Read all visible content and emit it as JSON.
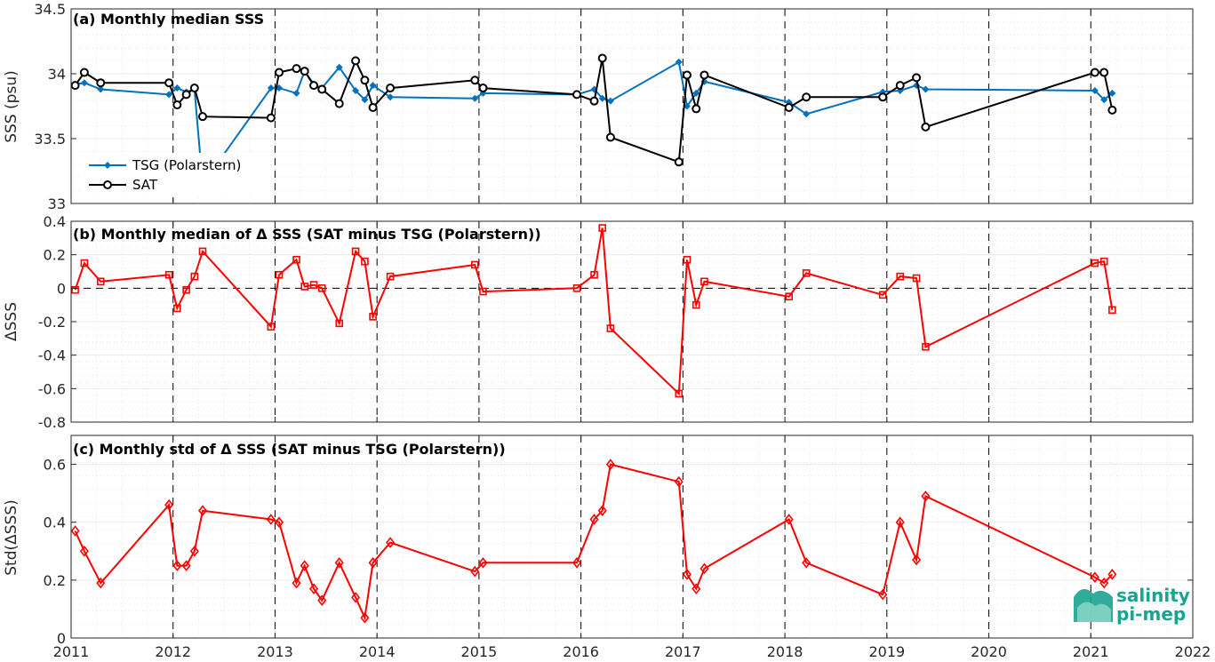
{
  "chart_data": [
    {
      "type": "line",
      "title": "(a) Monthly median SSS",
      "ylabel": "SSS (psu)",
      "xlim": [
        2011,
        2022
      ],
      "ylim": [
        33,
        34.5
      ],
      "yticks": [
        "33",
        "33.5",
        "34",
        "34.5"
      ],
      "xticks": [
        "2011",
        "2012",
        "2013",
        "2014",
        "2015",
        "2016",
        "2017",
        "2018",
        "2019",
        "2020",
        "2021",
        "2022"
      ],
      "legend_position": "lower-left",
      "series": [
        {
          "name": "TSG (Polarstern)",
          "color": "#0072bd",
          "marker": "diamond",
          "points": [
            [
              2011.04,
              33.92
            ],
            [
              2011.13,
              33.93
            ],
            [
              2011.29,
              33.88
            ],
            [
              2011.96,
              33.84
            ],
            [
              2012.04,
              33.89
            ],
            [
              2012.13,
              33.86
            ],
            [
              2012.21,
              33.88
            ],
            [
              2012.29,
              33.15
            ],
            [
              2012.96,
              33.89
            ],
            [
              2013.04,
              33.89
            ],
            [
              2013.21,
              33.85
            ],
            [
              2013.29,
              34.02
            ],
            [
              2013.38,
              33.92
            ],
            [
              2013.46,
              33.89
            ],
            [
              2013.63,
              34.05
            ],
            [
              2013.79,
              33.87
            ],
            [
              2013.88,
              33.8
            ],
            [
              2013.96,
              33.91
            ],
            [
              2014.13,
              33.82
            ],
            [
              2014.96,
              33.81
            ],
            [
              2015.04,
              33.85
            ],
            [
              2015.96,
              33.84
            ],
            [
              2016.13,
              33.88
            ],
            [
              2016.21,
              33.81
            ],
            [
              2016.29,
              33.79
            ],
            [
              2016.96,
              34.09
            ],
            [
              2017.04,
              33.75
            ],
            [
              2017.13,
              33.85
            ],
            [
              2017.21,
              33.94
            ],
            [
              2018.04,
              33.78
            ],
            [
              2018.21,
              33.69
            ],
            [
              2018.96,
              33.86
            ],
            [
              2019.13,
              33.87
            ],
            [
              2019.29,
              33.91
            ],
            [
              2019.38,
              33.88
            ],
            [
              2021.04,
              33.87
            ],
            [
              2021.13,
              33.8
            ],
            [
              2021.21,
              33.85
            ]
          ]
        },
        {
          "name": "SAT",
          "color": "#000000",
          "marker": "circle",
          "points": [
            [
              2011.04,
              33.91
            ],
            [
              2011.13,
              34.01
            ],
            [
              2011.29,
              33.93
            ],
            [
              2011.96,
              33.93
            ],
            [
              2012.04,
              33.76
            ],
            [
              2012.13,
              33.84
            ],
            [
              2012.21,
              33.89
            ],
            [
              2012.29,
              33.67
            ],
            [
              2012.96,
              33.66
            ],
            [
              2013.04,
              34.01
            ],
            [
              2013.21,
              34.04
            ],
            [
              2013.29,
              34.02
            ],
            [
              2013.38,
              33.91
            ],
            [
              2013.46,
              33.88
            ],
            [
              2013.63,
              33.77
            ],
            [
              2013.79,
              34.1
            ],
            [
              2013.88,
              33.95
            ],
            [
              2013.96,
              33.74
            ],
            [
              2014.13,
              33.89
            ],
            [
              2014.96,
              33.95
            ],
            [
              2015.04,
              33.89
            ],
            [
              2015.96,
              33.84
            ],
            [
              2016.13,
              33.79
            ],
            [
              2016.21,
              34.12
            ],
            [
              2016.29,
              33.51
            ],
            [
              2016.96,
              33.32
            ],
            [
              2017.04,
              33.99
            ],
            [
              2017.13,
              33.73
            ],
            [
              2017.21,
              33.99
            ],
            [
              2018.04,
              33.74
            ],
            [
              2018.21,
              33.82
            ],
            [
              2018.96,
              33.82
            ],
            [
              2019.13,
              33.91
            ],
            [
              2019.29,
              33.97
            ],
            [
              2019.38,
              33.59
            ],
            [
              2021.04,
              34.01
            ],
            [
              2021.13,
              34.01
            ],
            [
              2021.21,
              33.72
            ]
          ]
        }
      ]
    },
    {
      "type": "line",
      "title": "(b) Monthly median of Δ SSS (SAT minus TSG (Polarstern))",
      "ylabel": "ΔSSS",
      "xlim": [
        2011,
        2022
      ],
      "ylim": [
        -0.8,
        0.4
      ],
      "yticks": [
        "-0.8",
        "-0.6",
        "-0.4",
        "-0.2",
        "0",
        "0.2",
        "0.4"
      ],
      "xticks": [
        "2011",
        "2012",
        "2013",
        "2014",
        "2015",
        "2016",
        "2017",
        "2018",
        "2019",
        "2020",
        "2021",
        "2022"
      ],
      "reference_line": 0,
      "series": [
        {
          "color": "#ff0000",
          "marker": "square",
          "points": [
            [
              2011.04,
              -0.01
            ],
            [
              2011.13,
              0.15
            ],
            [
              2011.29,
              0.04
            ],
            [
              2011.96,
              0.08
            ],
            [
              2012.04,
              -0.12
            ],
            [
              2012.13,
              -0.01
            ],
            [
              2012.21,
              0.07
            ],
            [
              2012.29,
              0.22
            ],
            [
              2012.96,
              -0.23
            ],
            [
              2013.04,
              0.08
            ],
            [
              2013.21,
              0.17
            ],
            [
              2013.29,
              0.01
            ],
            [
              2013.38,
              0.02
            ],
            [
              2013.46,
              0.0
            ],
            [
              2013.63,
              -0.21
            ],
            [
              2013.79,
              0.22
            ],
            [
              2013.88,
              0.16
            ],
            [
              2013.96,
              -0.17
            ],
            [
              2014.13,
              0.07
            ],
            [
              2014.96,
              0.14
            ],
            [
              2015.04,
              -0.02
            ],
            [
              2015.96,
              0.0
            ],
            [
              2016.13,
              0.08
            ],
            [
              2016.21,
              0.36
            ],
            [
              2016.29,
              -0.24
            ],
            [
              2016.96,
              -0.63
            ],
            [
              2017.04,
              0.17
            ],
            [
              2017.13,
              -0.1
            ],
            [
              2017.21,
              0.04
            ],
            [
              2018.04,
              -0.05
            ],
            [
              2018.21,
              0.09
            ],
            [
              2018.96,
              -0.04
            ],
            [
              2019.13,
              0.07
            ],
            [
              2019.29,
              0.06
            ],
            [
              2019.38,
              -0.35
            ],
            [
              2021.04,
              0.15
            ],
            [
              2021.13,
              0.16
            ],
            [
              2021.21,
              -0.13
            ]
          ]
        }
      ]
    },
    {
      "type": "line",
      "title": "(c) Monthly std of Δ SSS (SAT minus TSG (Polarstern))",
      "ylabel": "Std(ΔSSS)",
      "xlim": [
        2011,
        2022
      ],
      "ylim": [
        0,
        0.7
      ],
      "yticks": [
        "0",
        "0.2",
        "0.4",
        "0.6"
      ],
      "xticks": [
        "2011",
        "2012",
        "2013",
        "2014",
        "2015",
        "2016",
        "2017",
        "2018",
        "2019",
        "2020",
        "2021",
        "2022"
      ],
      "series": [
        {
          "color": "#ff0000",
          "marker": "diamond-open",
          "points": [
            [
              2011.04,
              0.37
            ],
            [
              2011.13,
              0.3
            ],
            [
              2011.29,
              0.19
            ],
            [
              2011.96,
              0.46
            ],
            [
              2012.04,
              0.25
            ],
            [
              2012.13,
              0.25
            ],
            [
              2012.21,
              0.3
            ],
            [
              2012.29,
              0.44
            ],
            [
              2012.96,
              0.41
            ],
            [
              2013.04,
              0.4
            ],
            [
              2013.21,
              0.19
            ],
            [
              2013.29,
              0.25
            ],
            [
              2013.38,
              0.17
            ],
            [
              2013.46,
              0.13
            ],
            [
              2013.63,
              0.26
            ],
            [
              2013.79,
              0.14
            ],
            [
              2013.88,
              0.07
            ],
            [
              2013.96,
              0.26
            ],
            [
              2014.13,
              0.33
            ],
            [
              2014.96,
              0.23
            ],
            [
              2015.04,
              0.26
            ],
            [
              2015.96,
              0.26
            ],
            [
              2016.13,
              0.41
            ],
            [
              2016.21,
              0.44
            ],
            [
              2016.29,
              0.6
            ],
            [
              2016.96,
              0.54
            ],
            [
              2017.04,
              0.22
            ],
            [
              2017.13,
              0.17
            ],
            [
              2017.21,
              0.24
            ],
            [
              2018.04,
              0.41
            ],
            [
              2018.21,
              0.26
            ],
            [
              2018.96,
              0.15
            ],
            [
              2019.13,
              0.4
            ],
            [
              2019.29,
              0.27
            ],
            [
              2019.38,
              0.49
            ],
            [
              2021.04,
              0.21
            ],
            [
              2021.13,
              0.19
            ],
            [
              2021.21,
              0.22
            ]
          ]
        }
      ]
    }
  ],
  "logo": {
    "line1": "salinity",
    "line2": "pi-mep"
  },
  "colors": {
    "tsg": "#0072bd",
    "sat": "#000000",
    "delta": "#ff0000",
    "logo": "#1aa38f"
  }
}
